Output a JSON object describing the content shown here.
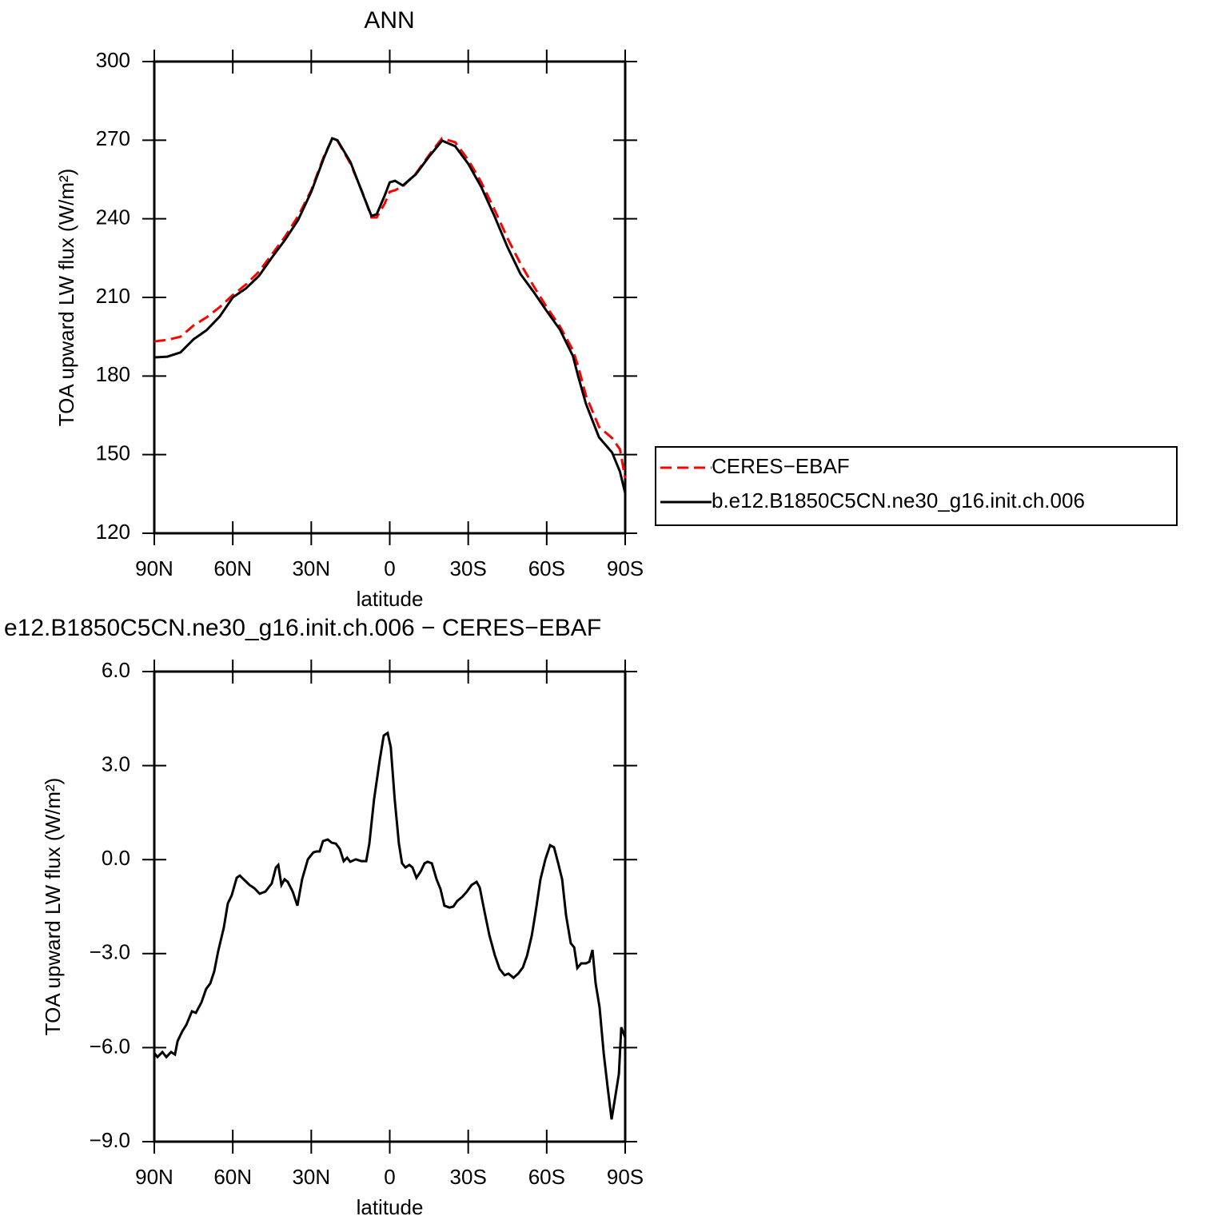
{
  "chart_data": [
    {
      "type": "line",
      "title": "ANN",
      "xlabel": "latitude",
      "ylabel": "TOA upward LW flux (W/m²)",
      "x": [
        90,
        85,
        80,
        75,
        70,
        65,
        60,
        55,
        50,
        45,
        40,
        35,
        30,
        25,
        22,
        20,
        15,
        10,
        7,
        5,
        2,
        0,
        -2,
        -5,
        -10,
        -15,
        -20,
        -25,
        -30,
        -35,
        -40,
        -45,
        -50,
        -55,
        -60,
        -65,
        -70,
        -72,
        -75,
        -80,
        -85,
        -88,
        -90
      ],
      "series": [
        {
          "name": "CERES−EBAF",
          "color": "#ff0000",
          "linestyle": "dashed",
          "values": [
            193.2,
            193.8,
            195,
            199.3,
            202.4,
            206.3,
            210.9,
            214.9,
            219.8,
            226.5,
            233.2,
            241.1,
            250.9,
            264.3,
            270.4,
            269.8,
            261,
            249,
            240.5,
            240.5,
            245.7,
            250.3,
            250.9,
            252.4,
            257.3,
            264.3,
            270.7,
            269.2,
            262.5,
            253.9,
            243.6,
            232.6,
            222.8,
            214.3,
            206.3,
            199,
            189.9,
            183.8,
            172.5,
            160.6,
            156.3,
            152,
            141
          ]
        },
        {
          "name": "b.e12.B1850C5CN.ne30_g16.init.ch.006",
          "color": "#000000",
          "linestyle": "solid",
          "values": [
            187.1,
            187.4,
            189,
            194,
            197.5,
            202.7,
            210,
            213.4,
            218.2,
            225.3,
            232,
            239.6,
            250.3,
            263.7,
            270.7,
            270,
            261.6,
            248.7,
            241.1,
            241.7,
            248.7,
            253.9,
            254.5,
            252.7,
            257,
            263.7,
            269.8,
            267.7,
            261,
            252.1,
            241.1,
            229.2,
            218.9,
            212.1,
            204.8,
            197.8,
            187.7,
            180,
            169.4,
            156.6,
            150.8,
            143.5,
            135.3
          ]
        }
      ],
      "xlim": [
        90,
        -90
      ],
      "xticks": [
        {
          "value": 90,
          "label": "90N"
        },
        {
          "value": 60,
          "label": "60N"
        },
        {
          "value": 30,
          "label": "30N"
        },
        0,
        {
          "value": -30,
          "label": "30S"
        },
        {
          "value": -60,
          "label": "60S"
        },
        {
          "value": -90,
          "label": "90S"
        }
      ],
      "ylim": [
        120,
        300
      ],
      "yticks": [
        120,
        150,
        180,
        210,
        240,
        270,
        300
      ],
      "legend": "right"
    },
    {
      "type": "line",
      "title": "e12.B1850C5CN.ne30_g16.init.ch.006 − CERES−EBAF",
      "xlabel": "latitude",
      "ylabel": "TOA upward LW flux (W/m²)",
      "x": [
        90,
        88.8,
        86.9,
        85.4,
        83.6,
        82.1,
        81.1,
        79.3,
        77.8,
        75.6,
        74.1,
        72,
        70.2,
        68.6,
        67.1,
        65.6,
        63.4,
        61.9,
        60.4,
        58.5,
        57.3,
        56.1,
        53.6,
        51.8,
        49.7,
        47.5,
        45.1,
        43.5,
        42.6,
        41.4,
        40.2,
        39,
        37.1,
        35.3,
        33.5,
        31.3,
        29.2,
        28,
        26.8,
        25.5,
        23.7,
        22.2,
        20.6,
        19.1,
        17.6,
        16.3,
        15.1,
        13,
        10.8,
        9,
        7.8,
        6,
        3.8,
        2.3,
        0.8,
        -0.4,
        -1.9,
        -3.5,
        -4.7,
        -6,
        -7.5,
        -8.7,
        -10.2,
        -11.8,
        -13.3,
        -14.5,
        -16.1,
        -17.9,
        -19.4,
        -20.9,
        -22.8,
        -24.3,
        -25.8,
        -27.7,
        -29.5,
        -31.3,
        -33.2,
        -34.4,
        -36.2,
        -38.1,
        -40.2,
        -42,
        -43.9,
        -45.4,
        -47.3,
        -49.1,
        -50.9,
        -52.5,
        -54.3,
        -55.8,
        -57.6,
        -59.5,
        -61.3,
        -62.8,
        -64.4,
        -65.9,
        -67.4,
        -69.2,
        -70.5,
        -71.7,
        -73.2,
        -75,
        -76.3,
        -77.5,
        -78.7,
        -80.2,
        -81.8,
        -83.3,
        -84.8,
        -86.3,
        -87.6,
        -88.5,
        -90
      ],
      "values": [
        -6.17,
        -6.3,
        -6.14,
        -6.3,
        -6.14,
        -6.22,
        -5.79,
        -5.48,
        -5.28,
        -4.84,
        -4.89,
        -4.56,
        -4.13,
        -3.95,
        -3.57,
        -2.93,
        -2.16,
        -1.4,
        -1.14,
        -0.58,
        -0.51,
        -0.61,
        -0.81,
        -0.91,
        -1.09,
        -1.02,
        -0.76,
        -0.25,
        -0.17,
        -0.81,
        -0.63,
        -0.71,
        -1.02,
        -1.47,
        -0.63,
        0.01,
        0.23,
        0.26,
        0.26,
        0.59,
        0.64,
        0.54,
        0.51,
        0.34,
        -0.05,
        0.06,
        -0.07,
        0.01,
        -0.05,
        -0.05,
        0.51,
        1.92,
        3.19,
        3.96,
        4.04,
        3.58,
        1.92,
        0.51,
        -0.12,
        -0.25,
        -0.17,
        -0.25,
        -0.58,
        -0.38,
        -0.12,
        -0.07,
        -0.12,
        -0.63,
        -0.94,
        -1.47,
        -1.53,
        -1.5,
        -1.32,
        -1.19,
        -1.02,
        -0.81,
        -0.71,
        -0.89,
        -1.65,
        -2.42,
        -3.06,
        -3.49,
        -3.69,
        -3.64,
        -3.77,
        -3.64,
        -3.44,
        -3.06,
        -2.42,
        -1.65,
        -0.63,
        0.01,
        0.46,
        0.39,
        -0.12,
        -0.63,
        -1.78,
        -2.67,
        -2.8,
        -3.46,
        -3.31,
        -3.31,
        -3.26,
        -2.88,
        -3.95,
        -4.71,
        -6.19,
        -7.27,
        -8.29,
        -7.52,
        -6.83,
        -5.35,
        -5.68
      ],
      "color": "#000000",
      "xlim": [
        90,
        -90
      ],
      "xticks": [
        {
          "value": 90,
          "label": "90N"
        },
        {
          "value": 60,
          "label": "60N"
        },
        {
          "value": 30,
          "label": "30N"
        },
        0,
        {
          "value": -30,
          "label": "30S"
        },
        {
          "value": -60,
          "label": "60S"
        },
        {
          "value": -90,
          "label": "90S"
        }
      ],
      "ylim": [
        -9,
        6
      ],
      "yticks": [
        {
          "value": -9,
          "label": "−9.0"
        },
        {
          "value": -6,
          "label": "−6.0"
        },
        {
          "value": -3,
          "label": "−3.0"
        },
        {
          "value": 0,
          "label": "0.0"
        },
        {
          "value": 3,
          "label": "3.0"
        },
        {
          "value": 6,
          "label": "6.0"
        }
      ]
    }
  ]
}
